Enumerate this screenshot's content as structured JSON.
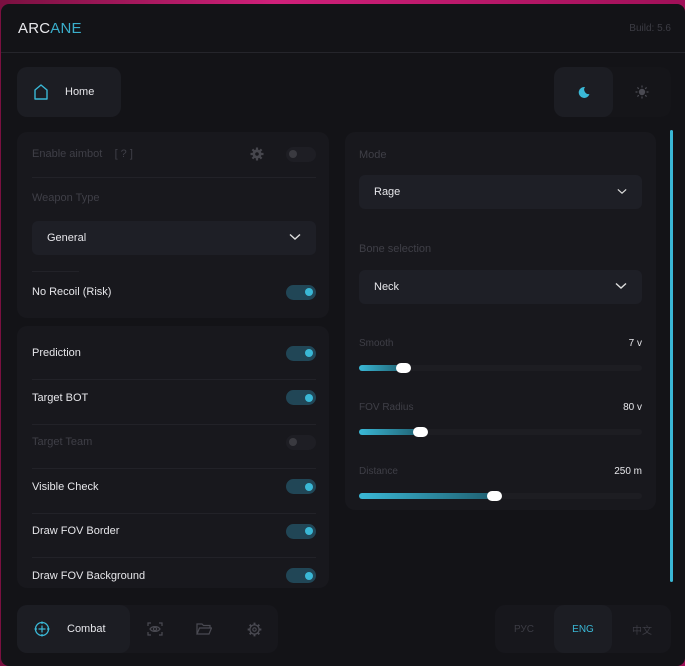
{
  "header": {
    "logo_a": "ARC",
    "logo_b": "ANE",
    "build": "Build: 5.6"
  },
  "top_nav": {
    "home_label": "Home",
    "home_icon": "home-icon",
    "theme_dark_icon": "moon-icon",
    "theme_light_icon": "sun-icon",
    "active_theme": "dark"
  },
  "left_panel": {
    "enable_aimbot": {
      "label": "Enable aimbot",
      "help": "[ ? ]",
      "on": false
    },
    "weapon_type": {
      "label": "Weapon Type",
      "value": "General"
    },
    "no_recoil": {
      "label": "No Recoil (Risk)",
      "on": true
    }
  },
  "toggles": [
    {
      "label": "Prediction",
      "on": true
    },
    {
      "label": "Target BOT",
      "on": true
    },
    {
      "label": "Target Team",
      "on": false
    },
    {
      "label": "Visible Check",
      "on": true
    },
    {
      "label": "Draw FOV Border",
      "on": true
    },
    {
      "label": "Draw FOV Background",
      "on": true
    }
  ],
  "right_panel": {
    "mode": {
      "label": "Mode",
      "value": "Rage"
    },
    "bone": {
      "label": "Bone selection",
      "value": "Neck"
    },
    "sliders": [
      {
        "label": "Smooth",
        "value": "7 v",
        "fraction": 0.16
      },
      {
        "label": "FOV Radius",
        "value": "80 v",
        "fraction": 0.22
      },
      {
        "label": "Distance",
        "value": "250 m",
        "fraction": 0.48
      }
    ]
  },
  "bottom_nav": {
    "active_label": "Combat",
    "tabs": [
      "crosshair-icon",
      "eye-scan-icon",
      "folder-icon",
      "gear-icon"
    ]
  },
  "languages": {
    "items": [
      "РУС",
      "ENG",
      "中文"
    ],
    "active": "ENG"
  },
  "colors": {
    "accent": "#3ab8d6",
    "background": "#131317",
    "panel": "#18181d"
  }
}
